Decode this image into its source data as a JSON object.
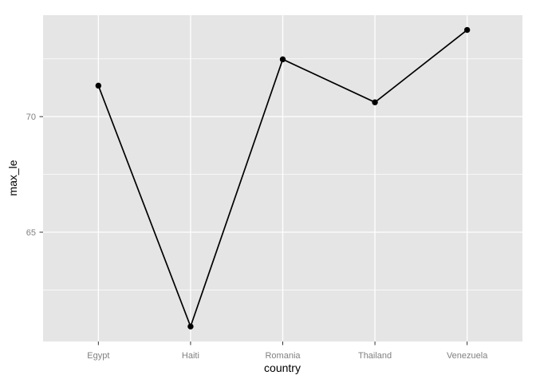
{
  "chart_data": {
    "type": "line",
    "title": "",
    "xlabel": "country",
    "ylabel": "max_le",
    "categories": [
      "Egypt",
      "Haiti",
      "Romania",
      "Thailand",
      "Venezuela"
    ],
    "values": [
      71.34,
      60.92,
      72.48,
      70.62,
      73.75
    ],
    "ylim": [
      60.27,
      74.39
    ],
    "y_major_ticks": [
      65,
      70
    ],
    "y_minor_ticks": [
      62.5,
      67.5,
      72.5
    ],
    "grid": true,
    "legend": "none",
    "marker": "point",
    "colors": {
      "background": "#FFFFFF",
      "panel_bg": "#E5E5E5",
      "grid_major": "#FFFFFF",
      "grid_minor": "#FFFFFF",
      "line": "#000000",
      "point": "#000000",
      "tick_label": "#808080",
      "axis_title": "#000000",
      "tick_mark": "#333333"
    }
  }
}
